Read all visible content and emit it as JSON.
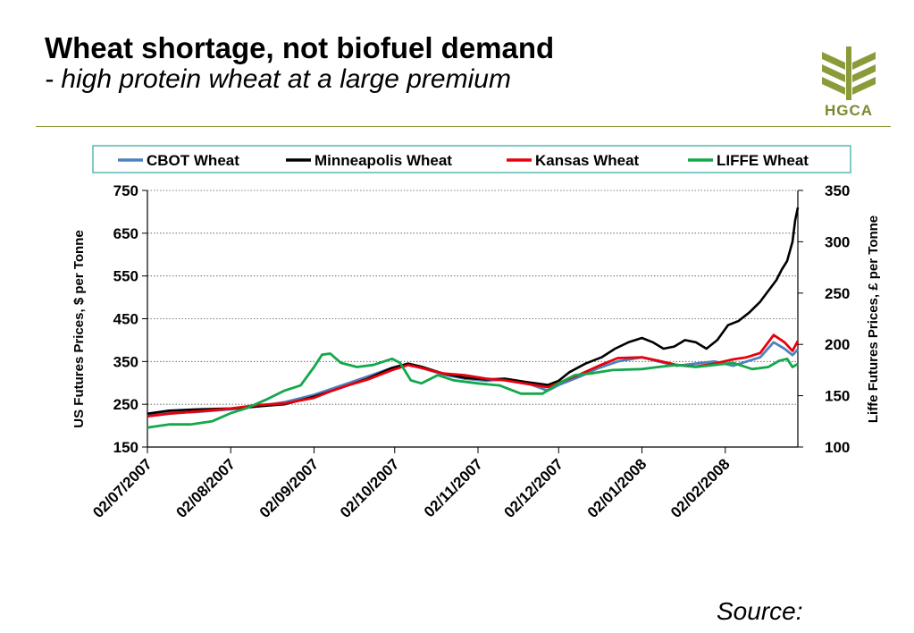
{
  "slide": {
    "title": "Wheat shortage, not biofuel demand",
    "subtitle": "- high protein wheat at a large premium",
    "logo_text": "HGCA",
    "source_label": "Source:"
  },
  "colors": {
    "cbot": "#4f81bd",
    "minneapolis": "#000000",
    "kansas": "#e8000b",
    "liffe": "#13a84a",
    "accent": "#8a9a3c",
    "logo": "#8c9b3a"
  },
  "chart_data": {
    "type": "line",
    "title": "",
    "xlabel": "",
    "ylabel": "US Futures Prices, $ per Tonne",
    "ylabel_right": "Liffe Futures Prices, £ per Tonne",
    "ylim": [
      150,
      750
    ],
    "ylim_right": [
      100,
      350
    ],
    "yticks": [
      150,
      250,
      350,
      450,
      550,
      650,
      750
    ],
    "yticks_right": [
      100,
      150,
      200,
      250,
      300,
      350
    ],
    "xlim": [
      "2007-07-02",
      "2008-02-29"
    ],
    "xticks": [
      "2007-07-02",
      "2007-08-02",
      "2007-09-02",
      "2007-10-02",
      "2007-11-02",
      "2007-12-02",
      "2008-01-02",
      "2008-02-02"
    ],
    "xtick_labels": [
      "02/07/2007",
      "02/08/2007",
      "02/09/2007",
      "02/10/2007",
      "02/11/2007",
      "02/12/2007",
      "02/01/2008",
      "02/02/2008"
    ],
    "grid": true,
    "legend_position": "top",
    "series": [
      {
        "name": "CBOT Wheat",
        "axis": "left",
        "color_key": "cbot",
        "points": [
          [
            "2007-07-02",
            225
          ],
          [
            "2007-07-10",
            230
          ],
          [
            "2007-07-20",
            232
          ],
          [
            "2007-08-02",
            238
          ],
          [
            "2007-08-12",
            245
          ],
          [
            "2007-08-22",
            255
          ],
          [
            "2007-09-02",
            272
          ],
          [
            "2007-09-08",
            285
          ],
          [
            "2007-09-15",
            300
          ],
          [
            "2007-09-22",
            315
          ],
          [
            "2007-10-01",
            335
          ],
          [
            "2007-10-07",
            345
          ],
          [
            "2007-10-12",
            335
          ],
          [
            "2007-10-20",
            320
          ],
          [
            "2007-10-28",
            310
          ],
          [
            "2007-11-05",
            305
          ],
          [
            "2007-11-12",
            308
          ],
          [
            "2007-11-20",
            300
          ],
          [
            "2007-11-28",
            282
          ],
          [
            "2007-12-02",
            295
          ],
          [
            "2007-12-10",
            315
          ],
          [
            "2007-12-17",
            335
          ],
          [
            "2007-12-24",
            350
          ],
          [
            "2008-01-02",
            360
          ],
          [
            "2008-01-08",
            350
          ],
          [
            "2008-01-15",
            340
          ],
          [
            "2008-01-22",
            345
          ],
          [
            "2008-01-29",
            350
          ],
          [
            "2008-02-05",
            340
          ],
          [
            "2008-02-10",
            350
          ],
          [
            "2008-02-15",
            360
          ],
          [
            "2008-02-20",
            395
          ],
          [
            "2008-02-24",
            380
          ],
          [
            "2008-02-27",
            365
          ],
          [
            "2008-02-29",
            378
          ]
        ]
      },
      {
        "name": "Minneapolis Wheat",
        "axis": "left",
        "color_key": "minneapolis",
        "points": [
          [
            "2007-07-02",
            228
          ],
          [
            "2007-07-10",
            235
          ],
          [
            "2007-07-20",
            238
          ],
          [
            "2007-08-02",
            240
          ],
          [
            "2007-08-12",
            245
          ],
          [
            "2007-08-22",
            250
          ],
          [
            "2007-09-02",
            268
          ],
          [
            "2007-09-08",
            280
          ],
          [
            "2007-09-15",
            295
          ],
          [
            "2007-09-22",
            310
          ],
          [
            "2007-10-01",
            335
          ],
          [
            "2007-10-07",
            345
          ],
          [
            "2007-10-12",
            338
          ],
          [
            "2007-10-20",
            322
          ],
          [
            "2007-10-28",
            312
          ],
          [
            "2007-11-05",
            308
          ],
          [
            "2007-11-12",
            310
          ],
          [
            "2007-11-20",
            302
          ],
          [
            "2007-11-28",
            295
          ],
          [
            "2007-12-02",
            305
          ],
          [
            "2007-12-06",
            325
          ],
          [
            "2007-12-12",
            345
          ],
          [
            "2007-12-18",
            360
          ],
          [
            "2007-12-23",
            380
          ],
          [
            "2007-12-28",
            395
          ],
          [
            "2008-01-02",
            405
          ],
          [
            "2008-01-06",
            395
          ],
          [
            "2008-01-10",
            380
          ],
          [
            "2008-01-14",
            385
          ],
          [
            "2008-01-18",
            400
          ],
          [
            "2008-01-22",
            395
          ],
          [
            "2008-01-26",
            380
          ],
          [
            "2008-01-30",
            400
          ],
          [
            "2008-02-03",
            435
          ],
          [
            "2008-02-07",
            445
          ],
          [
            "2008-02-11",
            465
          ],
          [
            "2008-02-15",
            490
          ],
          [
            "2008-02-18",
            515
          ],
          [
            "2008-02-21",
            540
          ],
          [
            "2008-02-23",
            565
          ],
          [
            "2008-02-25",
            585
          ],
          [
            "2008-02-27",
            630
          ],
          [
            "2008-02-28",
            680
          ],
          [
            "2008-02-29",
            710
          ]
        ]
      },
      {
        "name": "Kansas Wheat",
        "axis": "left",
        "color_key": "kansas",
        "points": [
          [
            "2007-07-02",
            222
          ],
          [
            "2007-07-10",
            228
          ],
          [
            "2007-07-20",
            233
          ],
          [
            "2007-08-02",
            240
          ],
          [
            "2007-08-12",
            248
          ],
          [
            "2007-08-22",
            252
          ],
          [
            "2007-09-02",
            265
          ],
          [
            "2007-09-08",
            280
          ],
          [
            "2007-09-15",
            295
          ],
          [
            "2007-09-22",
            308
          ],
          [
            "2007-10-01",
            330
          ],
          [
            "2007-10-07",
            342
          ],
          [
            "2007-10-12",
            335
          ],
          [
            "2007-10-20",
            322
          ],
          [
            "2007-10-28",
            318
          ],
          [
            "2007-11-05",
            310
          ],
          [
            "2007-11-12",
            306
          ],
          [
            "2007-11-20",
            298
          ],
          [
            "2007-11-28",
            290
          ],
          [
            "2007-12-02",
            300
          ],
          [
            "2007-12-10",
            320
          ],
          [
            "2007-12-17",
            340
          ],
          [
            "2007-12-24",
            358
          ],
          [
            "2008-01-02",
            360
          ],
          [
            "2008-01-08",
            352
          ],
          [
            "2008-01-15",
            342
          ],
          [
            "2008-01-22",
            338
          ],
          [
            "2008-01-29",
            345
          ],
          [
            "2008-02-05",
            355
          ],
          [
            "2008-02-10",
            360
          ],
          [
            "2008-02-15",
            370
          ],
          [
            "2008-02-20",
            412
          ],
          [
            "2008-02-24",
            395
          ],
          [
            "2008-02-27",
            375
          ],
          [
            "2008-02-29",
            398
          ]
        ]
      },
      {
        "name": "LIFFE Wheat",
        "axis": "right",
        "color_key": "liffe",
        "points": [
          [
            "2007-07-02",
            119
          ],
          [
            "2007-07-10",
            122
          ],
          [
            "2007-07-18",
            122
          ],
          [
            "2007-07-26",
            125
          ],
          [
            "2007-08-02",
            133
          ],
          [
            "2007-08-08",
            138
          ],
          [
            "2007-08-15",
            146
          ],
          [
            "2007-08-22",
            155
          ],
          [
            "2007-08-28",
            160
          ],
          [
            "2007-09-02",
            178
          ],
          [
            "2007-09-05",
            190
          ],
          [
            "2007-09-08",
            191
          ],
          [
            "2007-09-12",
            182
          ],
          [
            "2007-09-18",
            178
          ],
          [
            "2007-09-24",
            180
          ],
          [
            "2007-10-01",
            186
          ],
          [
            "2007-10-04",
            182
          ],
          [
            "2007-10-08",
            165
          ],
          [
            "2007-10-12",
            162
          ],
          [
            "2007-10-18",
            170
          ],
          [
            "2007-10-24",
            165
          ],
          [
            "2007-11-02",
            162
          ],
          [
            "2007-11-10",
            160
          ],
          [
            "2007-11-18",
            152
          ],
          [
            "2007-11-26",
            152
          ],
          [
            "2007-12-02",
            162
          ],
          [
            "2007-12-08",
            170
          ],
          [
            "2007-12-15",
            172
          ],
          [
            "2007-12-22",
            175
          ],
          [
            "2008-01-02",
            176
          ],
          [
            "2008-01-08",
            178
          ],
          [
            "2008-01-15",
            180
          ],
          [
            "2008-01-22",
            178
          ],
          [
            "2008-01-29",
            180
          ],
          [
            "2008-02-05",
            182
          ],
          [
            "2008-02-12",
            176
          ],
          [
            "2008-02-18",
            178
          ],
          [
            "2008-02-22",
            184
          ],
          [
            "2008-02-25",
            186
          ],
          [
            "2008-02-27",
            178
          ],
          [
            "2008-02-29",
            181
          ]
        ]
      }
    ]
  }
}
